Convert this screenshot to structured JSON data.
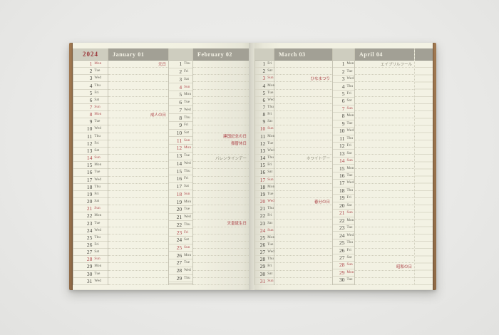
{
  "colors": {
    "red": "#ad4449",
    "note-gray": "#8b8979",
    "band": "#a2a095",
    "hcell": "#cecdbf",
    "year-red": "#9c3538"
  },
  "calendar": {
    "year": "2024",
    "row_count": 31,
    "months": [
      {
        "name": "January",
        "num": "01",
        "label": "January 01",
        "days": [
          {
            "d": 1,
            "w": "Mon",
            "red": 1,
            "note": "元日",
            "note_red": 1
          },
          {
            "d": 2,
            "w": "Tue"
          },
          {
            "d": 3,
            "w": "Wed"
          },
          {
            "d": 4,
            "w": "Thu"
          },
          {
            "d": 5,
            "w": "Fri"
          },
          {
            "d": 6,
            "w": "Sat"
          },
          {
            "d": 7,
            "w": "Sun",
            "red": 1
          },
          {
            "d": 8,
            "w": "Mon",
            "red": 1,
            "note": "成人の日",
            "note_red": 1
          },
          {
            "d": 9,
            "w": "Tue"
          },
          {
            "d": 10,
            "w": "Wed"
          },
          {
            "d": 11,
            "w": "Thu"
          },
          {
            "d": 12,
            "w": "Fri"
          },
          {
            "d": 13,
            "w": "Sat"
          },
          {
            "d": 14,
            "w": "Sun",
            "red": 1
          },
          {
            "d": 15,
            "w": "Mon"
          },
          {
            "d": 16,
            "w": "Tue"
          },
          {
            "d": 17,
            "w": "Wed"
          },
          {
            "d": 18,
            "w": "Thu"
          },
          {
            "d": 19,
            "w": "Fri"
          },
          {
            "d": 20,
            "w": "Sat"
          },
          {
            "d": 21,
            "w": "Sun",
            "red": 1
          },
          {
            "d": 22,
            "w": "Mon"
          },
          {
            "d": 23,
            "w": "Tue"
          },
          {
            "d": 24,
            "w": "Wed"
          },
          {
            "d": 25,
            "w": "Thu"
          },
          {
            "d": 26,
            "w": "Fri"
          },
          {
            "d": 27,
            "w": "Sat"
          },
          {
            "d": 28,
            "w": "Sun",
            "red": 1
          },
          {
            "d": 29,
            "w": "Mon"
          },
          {
            "d": 30,
            "w": "Tue"
          },
          {
            "d": 31,
            "w": "Wed"
          }
        ]
      },
      {
        "name": "February",
        "num": "02",
        "label": "February 02",
        "days": [
          {
            "d": 1,
            "w": "Thu"
          },
          {
            "d": 2,
            "w": "Fri"
          },
          {
            "d": 3,
            "w": "Sat"
          },
          {
            "d": 4,
            "w": "Sun",
            "red": 1
          },
          {
            "d": 5,
            "w": "Mon"
          },
          {
            "d": 6,
            "w": "Tue"
          },
          {
            "d": 7,
            "w": "Wed"
          },
          {
            "d": 8,
            "w": "Thu"
          },
          {
            "d": 9,
            "w": "Fri"
          },
          {
            "d": 10,
            "w": "Sat"
          },
          {
            "d": 11,
            "w": "Sun",
            "red": 1,
            "note": "建国記念の日",
            "note_red": 1
          },
          {
            "d": 12,
            "w": "Mon",
            "red": 1,
            "note": "振替休日",
            "note_red": 1
          },
          {
            "d": 13,
            "w": "Tue"
          },
          {
            "d": 14,
            "w": "Wed",
            "note": "バレンタインデー",
            "note_red": 0
          },
          {
            "d": 15,
            "w": "Thu"
          },
          {
            "d": 16,
            "w": "Fri"
          },
          {
            "d": 17,
            "w": "Sat"
          },
          {
            "d": 18,
            "w": "Sun",
            "red": 1
          },
          {
            "d": 19,
            "w": "Mon"
          },
          {
            "d": 20,
            "w": "Tue"
          },
          {
            "d": 21,
            "w": "Wed"
          },
          {
            "d": 22,
            "w": "Thu"
          },
          {
            "d": 23,
            "w": "Fri",
            "red": 1,
            "note": "天皇誕生日",
            "note_red": 1
          },
          {
            "d": 24,
            "w": "Sat"
          },
          {
            "d": 25,
            "w": "Sun",
            "red": 1
          },
          {
            "d": 26,
            "w": "Mon"
          },
          {
            "d": 27,
            "w": "Tue"
          },
          {
            "d": 28,
            "w": "Wed"
          },
          {
            "d": 29,
            "w": "Thu"
          }
        ]
      },
      {
        "name": "March",
        "num": "03",
        "label": "March 03",
        "days": [
          {
            "d": 1,
            "w": "Fri"
          },
          {
            "d": 2,
            "w": "Sat"
          },
          {
            "d": 3,
            "w": "Sun",
            "red": 1,
            "note": "ひなまつり",
            "note_red": 1
          },
          {
            "d": 4,
            "w": "Mon"
          },
          {
            "d": 5,
            "w": "Tue"
          },
          {
            "d": 6,
            "w": "Wed"
          },
          {
            "d": 7,
            "w": "Thu"
          },
          {
            "d": 8,
            "w": "Fri"
          },
          {
            "d": 9,
            "w": "Sat"
          },
          {
            "d": 10,
            "w": "Sun",
            "red": 1
          },
          {
            "d": 11,
            "w": "Mon"
          },
          {
            "d": 12,
            "w": "Tue"
          },
          {
            "d": 13,
            "w": "Wed"
          },
          {
            "d": 14,
            "w": "Thu",
            "note": "ホワイトデー",
            "note_red": 0
          },
          {
            "d": 15,
            "w": "Fri"
          },
          {
            "d": 16,
            "w": "Sat"
          },
          {
            "d": 17,
            "w": "Sun",
            "red": 1
          },
          {
            "d": 18,
            "w": "Mon"
          },
          {
            "d": 19,
            "w": "Tue"
          },
          {
            "d": 20,
            "w": "Wed",
            "red": 1,
            "note": "春分の日",
            "note_red": 1
          },
          {
            "d": 21,
            "w": "Thu"
          },
          {
            "d": 22,
            "w": "Fri"
          },
          {
            "d": 23,
            "w": "Sat"
          },
          {
            "d": 24,
            "w": "Sun",
            "red": 1
          },
          {
            "d": 25,
            "w": "Mon"
          },
          {
            "d": 26,
            "w": "Tue"
          },
          {
            "d": 27,
            "w": "Wed"
          },
          {
            "d": 28,
            "w": "Thu"
          },
          {
            "d": 29,
            "w": "Fri"
          },
          {
            "d": 30,
            "w": "Sat"
          },
          {
            "d": 31,
            "w": "Sun",
            "red": 1
          }
        ]
      },
      {
        "name": "April",
        "num": "04",
        "label": "April 04",
        "days": [
          {
            "d": 1,
            "w": "Mon",
            "note": "エイプリルフール",
            "note_red": 0
          },
          {
            "d": 2,
            "w": "Tue"
          },
          {
            "d": 3,
            "w": "Wed"
          },
          {
            "d": 4,
            "w": "Thu"
          },
          {
            "d": 5,
            "w": "Fri"
          },
          {
            "d": 6,
            "w": "Sat"
          },
          {
            "d": 7,
            "w": "Sun",
            "red": 1
          },
          {
            "d": 8,
            "w": "Mon"
          },
          {
            "d": 9,
            "w": "Tue"
          },
          {
            "d": 10,
            "w": "Wed"
          },
          {
            "d": 11,
            "w": "Thu"
          },
          {
            "d": 12,
            "w": "Fri"
          },
          {
            "d": 13,
            "w": "Sat"
          },
          {
            "d": 14,
            "w": "Sun",
            "red": 1
          },
          {
            "d": 15,
            "w": "Mon"
          },
          {
            "d": 16,
            "w": "Tue"
          },
          {
            "d": 17,
            "w": "Wed"
          },
          {
            "d": 18,
            "w": "Thu"
          },
          {
            "d": 19,
            "w": "Fri"
          },
          {
            "d": 20,
            "w": "Sat"
          },
          {
            "d": 21,
            "w": "Sun",
            "red": 1
          },
          {
            "d": 22,
            "w": "Mon"
          },
          {
            "d": 23,
            "w": "Tue"
          },
          {
            "d": 24,
            "w": "Wed"
          },
          {
            "d": 25,
            "w": "Thu"
          },
          {
            "d": 26,
            "w": "Fri"
          },
          {
            "d": 27,
            "w": "Sat"
          },
          {
            "d": 28,
            "w": "Sun",
            "red": 1
          },
          {
            "d": 29,
            "w": "Mon",
            "red": 1,
            "note": "昭和の日",
            "note_red": 1
          },
          {
            "d": 30,
            "w": "Tue"
          }
        ]
      }
    ]
  }
}
